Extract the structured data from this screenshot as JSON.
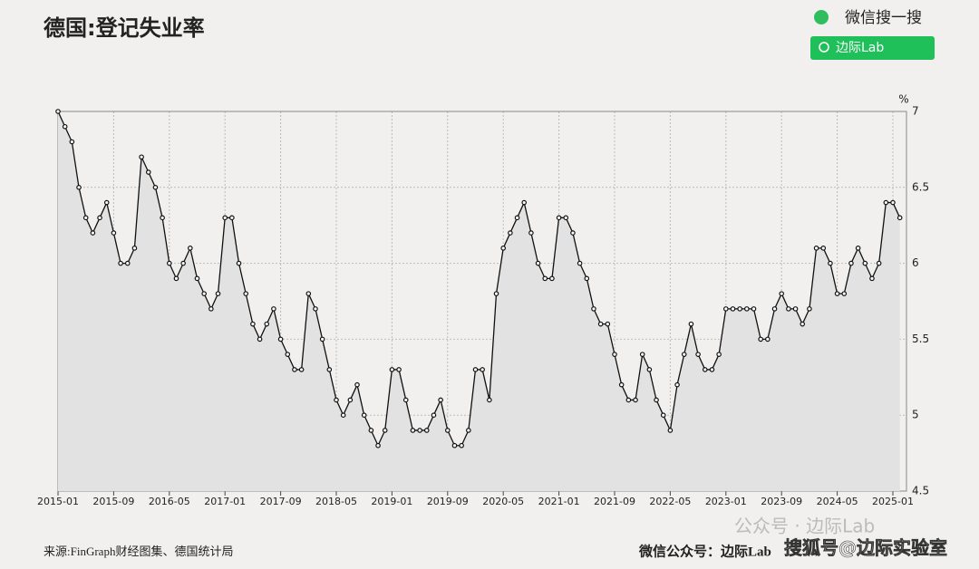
{
  "chart_data": {
    "type": "line",
    "title": "德国:登记失业率",
    "y_unit": "%",
    "source": "来源:FinGraph财经图集、德国统计局",
    "footer": "微信公众号：边际Lab",
    "search_label": "微信搜一搜",
    "search_button": "边际Lab",
    "watermarks": [
      "公众号 · 边际Lab",
      "搜狐号@边际实验室"
    ],
    "categories": [
      "2015-01",
      null,
      null,
      null,
      null,
      null,
      null,
      null,
      "2015-09",
      null,
      null,
      null,
      null,
      null,
      null,
      null,
      "2016-05",
      null,
      null,
      null,
      null,
      null,
      null,
      null,
      "2017-01",
      null,
      null,
      null,
      null,
      null,
      null,
      null,
      "2017-09",
      null,
      null,
      null,
      null,
      null,
      null,
      null,
      "2018-05",
      null,
      null,
      null,
      null,
      null,
      null,
      null,
      "2019-01",
      null,
      null,
      null,
      null,
      null,
      null,
      null,
      "2019-09",
      null,
      null,
      null,
      null,
      null,
      null,
      null,
      "2020-05",
      null,
      null,
      null,
      null,
      null,
      null,
      null,
      "2021-01",
      null,
      null,
      null,
      null,
      null,
      null,
      null,
      "2021-09",
      null,
      null,
      null,
      null,
      null,
      null,
      null,
      "2022-05",
      null,
      null,
      null,
      null,
      null,
      null,
      null,
      "2023-01",
      null,
      null,
      null,
      null,
      null,
      null,
      null,
      "2023-09",
      null,
      null,
      null,
      null,
      null,
      null,
      null,
      "2024-05",
      null,
      null,
      null,
      null,
      null,
      null,
      null,
      "2025-01",
      null
    ],
    "series": [
      {
        "name": "登记失业率",
        "color": "#111111",
        "values": [
          7.0,
          6.9,
          6.8,
          6.5,
          6.3,
          6.2,
          6.3,
          6.4,
          6.2,
          6.0,
          6.0,
          6.1,
          6.7,
          6.6,
          6.5,
          6.3,
          6.0,
          5.9,
          6.0,
          6.1,
          5.9,
          5.8,
          5.7,
          5.8,
          6.3,
          6.3,
          6.0,
          5.8,
          5.6,
          5.5,
          5.6,
          5.7,
          5.5,
          5.4,
          5.3,
          5.3,
          5.8,
          5.7,
          5.5,
          5.3,
          5.1,
          5.0,
          5.1,
          5.2,
          5.0,
          4.9,
          4.8,
          4.9,
          5.3,
          5.3,
          5.1,
          4.9,
          4.9,
          4.9,
          5.0,
          5.1,
          4.9,
          4.8,
          4.8,
          4.9,
          5.3,
          5.3,
          5.1,
          5.8,
          6.1,
          6.2,
          6.3,
          6.4,
          6.2,
          6.0,
          5.9,
          5.9,
          6.3,
          6.3,
          6.2,
          6.0,
          5.9,
          5.7,
          5.6,
          5.6,
          5.4,
          5.2,
          5.1,
          5.1,
          5.4,
          5.3,
          5.1,
          5.0,
          4.9,
          5.2,
          5.4,
          5.6,
          5.4,
          5.3,
          5.3,
          5.4,
          5.7,
          5.7,
          5.7,
          5.7,
          5.7,
          5.5,
          5.5,
          5.7,
          5.8,
          5.7,
          5.7,
          5.6,
          5.7,
          6.1,
          6.1,
          6.0,
          5.8,
          5.8,
          6.0,
          6.1,
          6.0,
          5.9,
          6.0,
          6.4,
          6.4,
          6.3
        ]
      }
    ],
    "ylim": [
      4.5,
      7
    ],
    "yticks": [
      4.5,
      5,
      5.5,
      6,
      6.5,
      7
    ],
    "grid": true,
    "area_color": "#e2e2e2"
  }
}
